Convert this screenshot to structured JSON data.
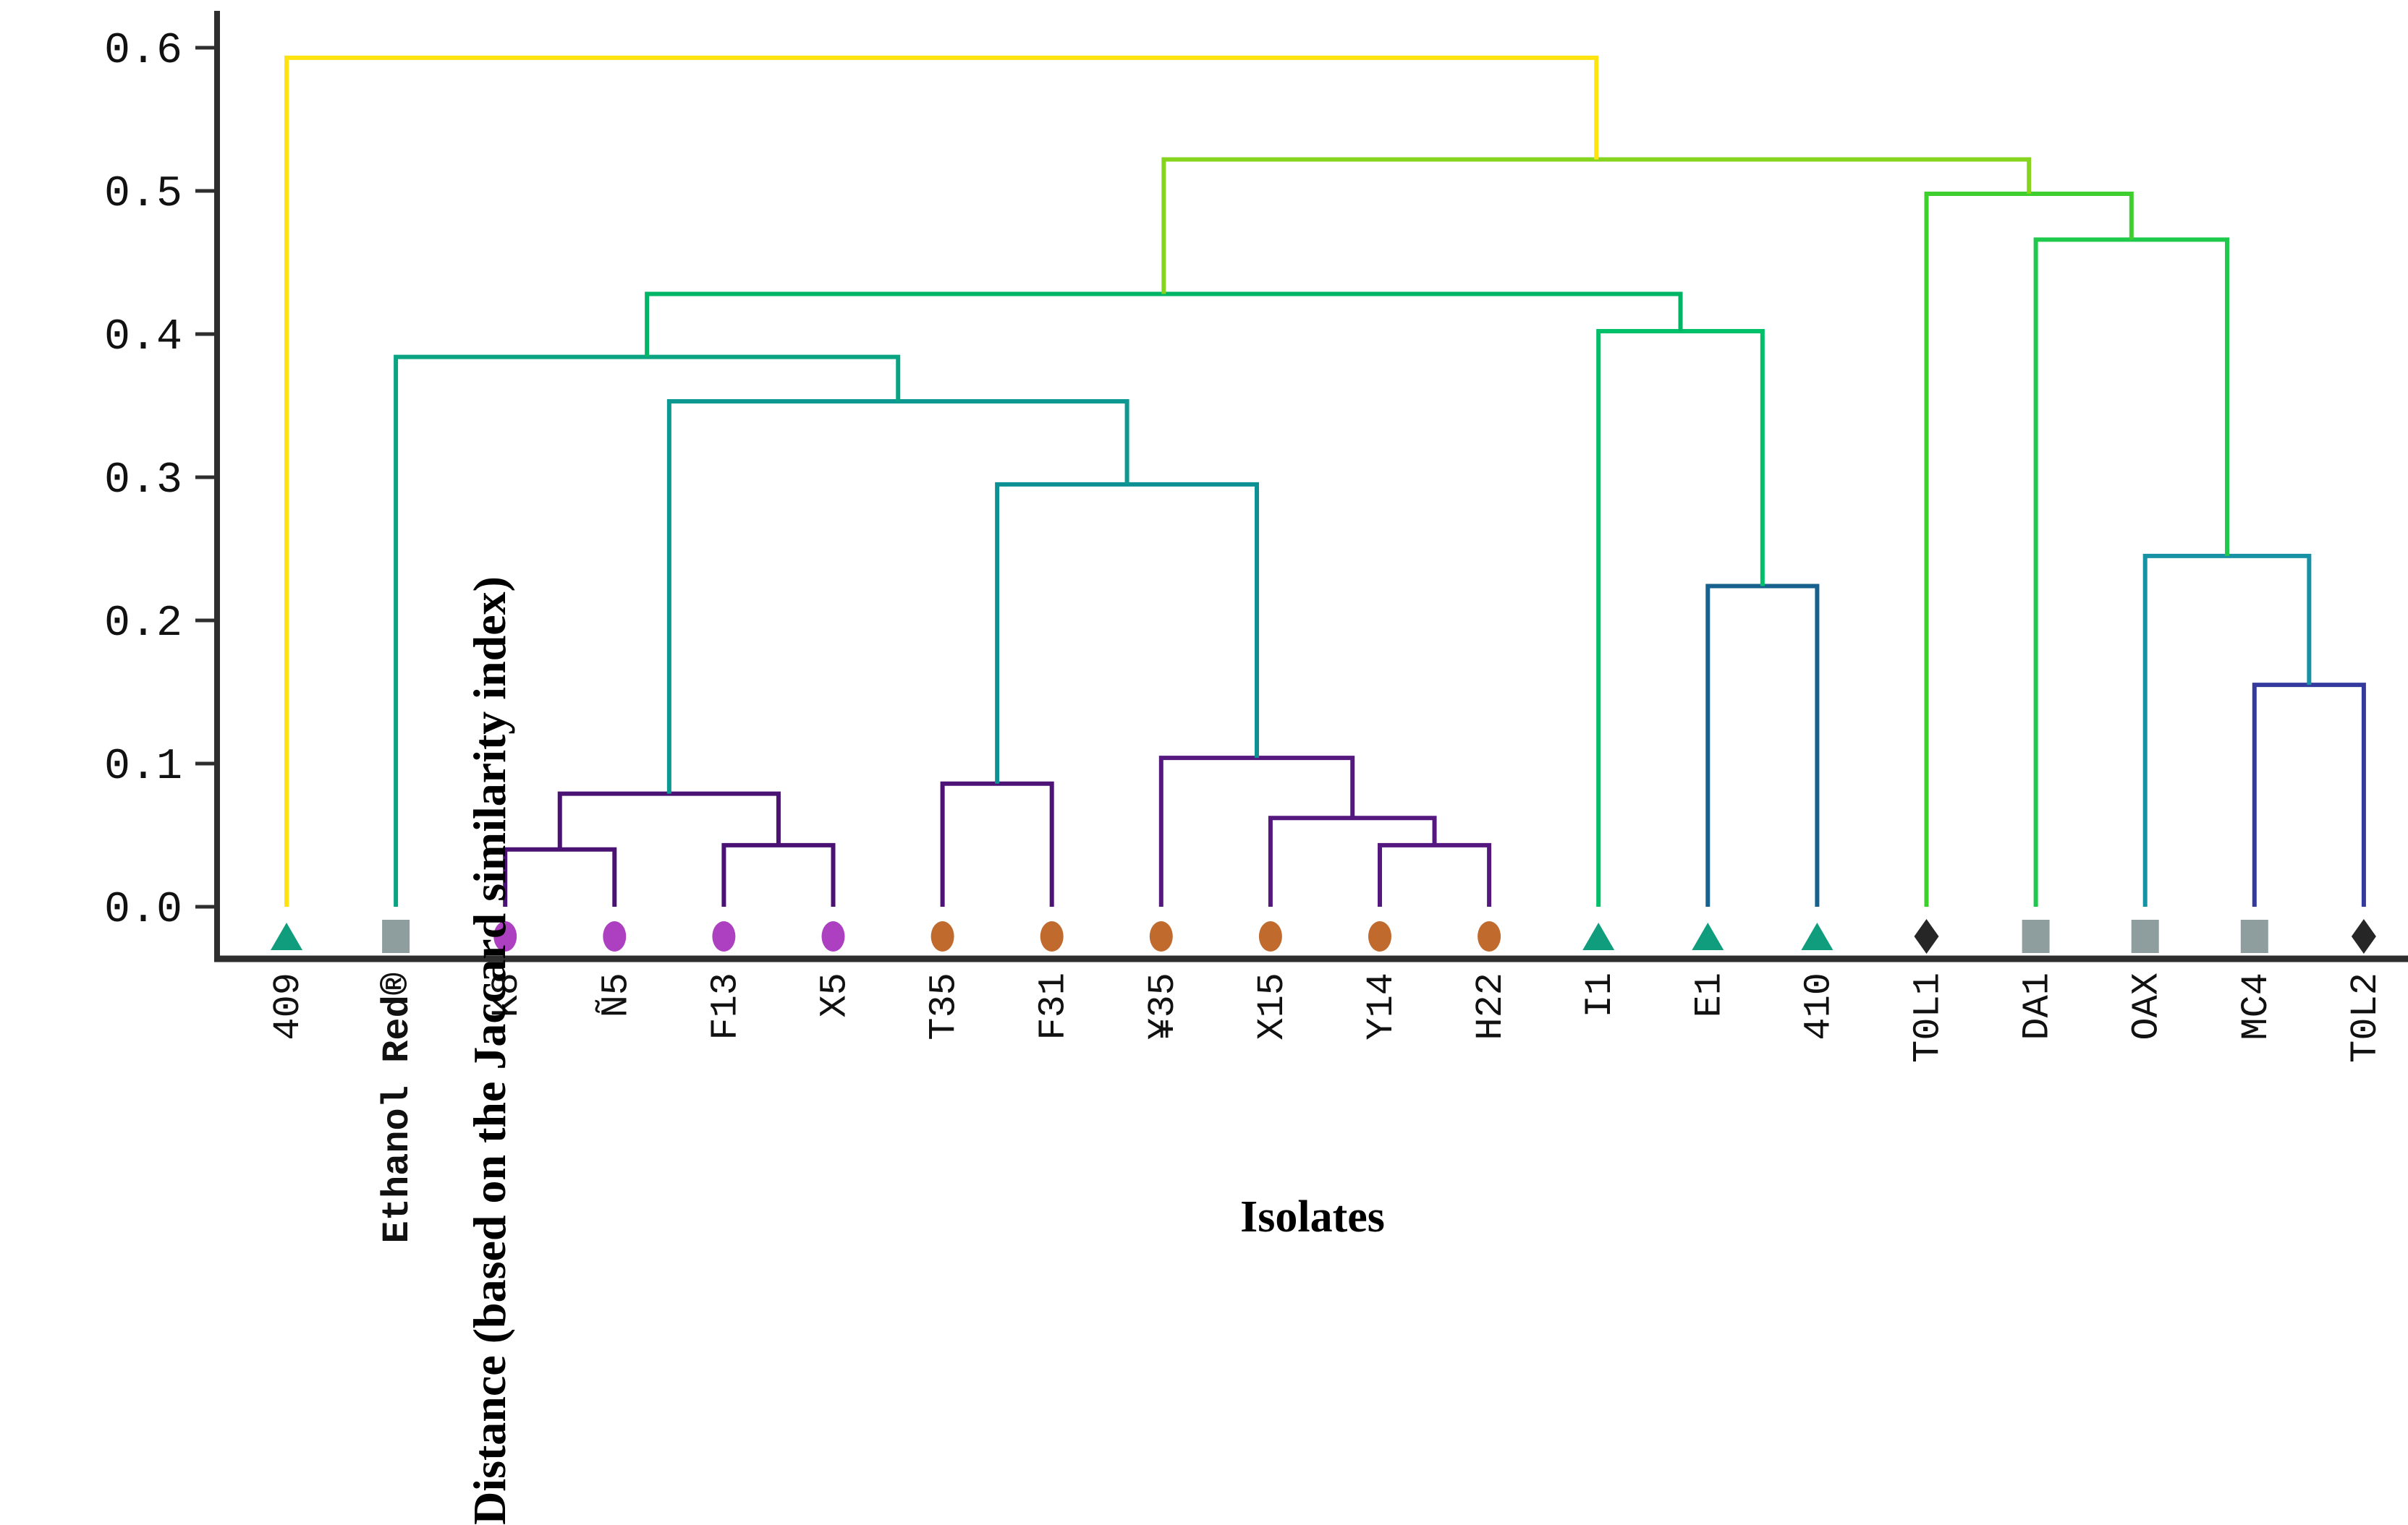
{
  "figure": {
    "ylabel": "Distance (based on the Jaccard similarity index)",
    "xlabel": "Isolates"
  },
  "chart_data": {
    "type": "dendrogram",
    "title": "",
    "ylabel": "Distance (based on the Jaccard similarity index)",
    "xlabel": "Isolates",
    "ylim": [
      0.0,
      0.6
    ],
    "grid": false,
    "legend_position": "none",
    "yticks": [
      "0.0",
      "0.1",
      "0.2",
      "0.3",
      "0.4",
      "0.5",
      "0.6"
    ],
    "ytick_values": [
      0.0,
      0.1,
      0.2,
      0.3,
      0.4,
      0.5,
      0.6
    ],
    "marker_colors": {
      "triangle": "#0F9D7D",
      "square": "#8E9D9D",
      "circle-magenta": "#AD40C0",
      "circle-orange": "#C06A2E",
      "diamond": "#262626"
    },
    "leaves": [
      {
        "id": "409",
        "label": "409",
        "marker": "triangle",
        "emphasis": false
      },
      {
        "id": "EthanolRed",
        "label": "Ethanol Red®",
        "marker": "square",
        "emphasis": true
      },
      {
        "id": "K8",
        "label": "K8",
        "marker": "circle-magenta",
        "emphasis": false
      },
      {
        "id": "N5",
        "label": "Ñ5",
        "marker": "circle-magenta",
        "emphasis": false
      },
      {
        "id": "F13",
        "label": "F13",
        "marker": "circle-magenta",
        "emphasis": false
      },
      {
        "id": "X5",
        "label": "X5",
        "marker": "circle-magenta",
        "emphasis": false
      },
      {
        "id": "T35",
        "label": "T35",
        "marker": "circle-orange",
        "emphasis": false
      },
      {
        "id": "F31",
        "label": "F31",
        "marker": "circle-orange",
        "emphasis": false
      },
      {
        "id": "Y35",
        "label": "¥35",
        "marker": "circle-orange",
        "emphasis": false
      },
      {
        "id": "X15",
        "label": "X15",
        "marker": "circle-orange",
        "emphasis": false
      },
      {
        "id": "Y14",
        "label": "Y14",
        "marker": "circle-orange",
        "emphasis": false
      },
      {
        "id": "H22",
        "label": "H22",
        "marker": "circle-orange",
        "emphasis": false
      },
      {
        "id": "I1",
        "label": "I1",
        "marker": "triangle",
        "emphasis": false
      },
      {
        "id": "E1",
        "label": "E1",
        "marker": "triangle",
        "emphasis": false
      },
      {
        "id": "410",
        "label": "410",
        "marker": "triangle",
        "emphasis": false
      },
      {
        "id": "T0L1",
        "label": "T0L1",
        "marker": "diamond",
        "emphasis": false
      },
      {
        "id": "DA1",
        "label": "DA1",
        "marker": "square",
        "emphasis": false
      },
      {
        "id": "OAX",
        "label": "OAX",
        "marker": "square",
        "emphasis": false
      },
      {
        "id": "MC4",
        "label": "MC4",
        "marker": "square",
        "emphasis": false
      },
      {
        "id": "T0L2",
        "label": "T0L2",
        "marker": "diamond",
        "emphasis": false
      }
    ],
    "links": [
      {
        "id": "n1",
        "a": "K8",
        "b": "N5",
        "height": 0.04,
        "color": "#4A1272"
      },
      {
        "id": "n2",
        "a": "F13",
        "b": "X5",
        "height": 0.043,
        "color": "#4A1272"
      },
      {
        "id": "n3",
        "a": "n1",
        "b": "n2",
        "height": 0.079,
        "color": "#4A1272"
      },
      {
        "id": "n4",
        "a": "Y14",
        "b": "H22",
        "height": 0.043,
        "color": "#55187F"
      },
      {
        "id": "n5",
        "a": "X15",
        "b": "n4",
        "height": 0.062,
        "color": "#55187F"
      },
      {
        "id": "n6",
        "a": "Y35",
        "b": "n5",
        "height": 0.104,
        "color": "#55187F"
      },
      {
        "id": "n7",
        "a": "T35",
        "b": "F31",
        "height": 0.086,
        "color": "#4D1377"
      },
      {
        "id": "n8",
        "a": "n7",
        "b": "n6",
        "height": 0.295,
        "color": "#0C9094"
      },
      {
        "id": "n9",
        "a": "n3",
        "b": "n8",
        "height": 0.353,
        "color": "#0D9892"
      },
      {
        "id": "n10",
        "a": "EthanolRed",
        "b": "n9",
        "height": 0.384,
        "color": "#0BA483"
      },
      {
        "id": "n11",
        "a": "E1",
        "b": "410",
        "height": 0.224,
        "color": "#16618E"
      },
      {
        "id": "n12",
        "a": "I1",
        "b": "n11",
        "height": 0.402,
        "color": "#00C169"
      },
      {
        "id": "n13",
        "a": "n10",
        "b": "n12",
        "height": 0.428,
        "color": "#00B565"
      },
      {
        "id": "n14",
        "a": "MC4",
        "b": "T0L2",
        "height": 0.155,
        "color": "#353B9E"
      },
      {
        "id": "n15",
        "a": "OAX",
        "b": "n14",
        "height": 0.245,
        "color": "#1792A5"
      },
      {
        "id": "n16",
        "a": "DA1",
        "b": "n15",
        "height": 0.466,
        "color": "#1EC94B"
      },
      {
        "id": "n17",
        "a": "T0L1",
        "b": "n16",
        "height": 0.498,
        "color": "#3ECF2E"
      },
      {
        "id": "n18",
        "a": "n13",
        "b": "n17",
        "height": 0.522,
        "color": "#86D41E"
      },
      {
        "id": "n19",
        "a": "409",
        "b": "n18",
        "height": 0.593,
        "color": "#FFE311"
      }
    ],
    "axis_color": "#2E2E2E",
    "tick_label_color": "#111111",
    "leaf_label_color": "#111111"
  }
}
